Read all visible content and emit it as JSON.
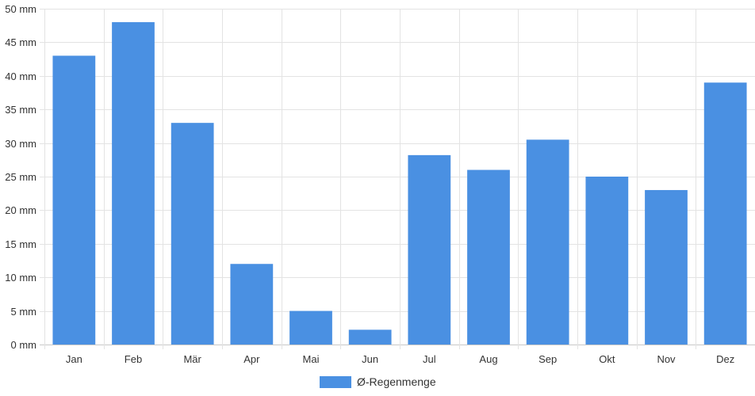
{
  "chart_data": {
    "type": "bar",
    "categories": [
      "Jan",
      "Feb",
      "Mär",
      "Apr",
      "Mai",
      "Jun",
      "Jul",
      "Aug",
      "Sep",
      "Okt",
      "Nov",
      "Dez"
    ],
    "series": [
      {
        "name": "Ø-Regenmenge",
        "values": [
          43,
          48,
          33,
          12,
          5,
          2.2,
          28.2,
          26,
          30.5,
          25,
          23,
          39
        ],
        "color": "#4a90e2"
      }
    ],
    "ylim": [
      0,
      50
    ],
    "y_ticks": [
      0,
      5,
      10,
      15,
      20,
      25,
      30,
      35,
      40,
      45,
      50
    ],
    "y_tick_labels": [
      "0 mm",
      "5 mm",
      "10 mm",
      "15 mm",
      "20 mm",
      "25 mm",
      "30 mm",
      "35 mm",
      "40 mm",
      "45 mm",
      "50 mm"
    ],
    "grid": true,
    "legend_position": "bottom"
  }
}
